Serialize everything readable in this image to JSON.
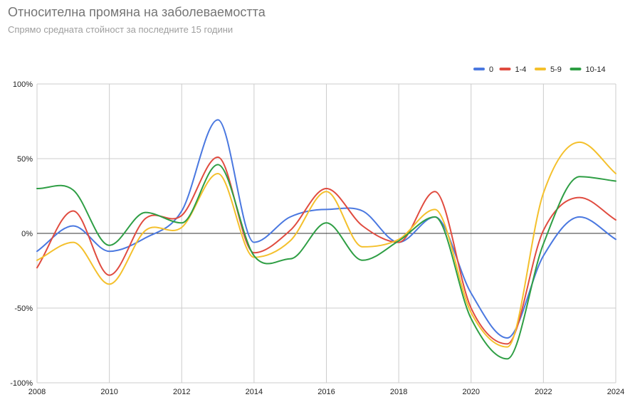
{
  "chart_data": {
    "type": "line",
    "title": "Относителна промяна на заболеваемостта",
    "subtitle": "Спрямо средната стойност за последните 15 години",
    "xlabel": "",
    "ylabel": "",
    "x": [
      2008,
      2009,
      2010,
      2011,
      2012,
      2013,
      2014,
      2015,
      2016,
      2017,
      2018,
      2019,
      2020,
      2021,
      2022,
      2023,
      2024
    ],
    "xlim": [
      2008,
      2024
    ],
    "ylim": [
      -100,
      100
    ],
    "xticks": [
      "2008",
      "2010",
      "2012",
      "2014",
      "2016",
      "2018",
      "2020",
      "2022",
      "2024"
    ],
    "yticks": [
      {
        "value": 100,
        "label": "100%"
      },
      {
        "value": 50,
        "label": "50%"
      },
      {
        "value": 0,
        "label": "0%"
      },
      {
        "value": -50,
        "label": "-50%"
      },
      {
        "value": -100,
        "label": "-100%"
      }
    ],
    "grid": true,
    "legend_position": "top-right",
    "series": [
      {
        "name": "0",
        "color": "#4a78e0",
        "values": [
          -12,
          5,
          -12,
          -3,
          15,
          76,
          -6,
          11,
          16,
          15,
          -6,
          11,
          -40,
          -70,
          -15,
          11,
          -4
        ]
      },
      {
        "name": "1-4",
        "color": "#e04b3f",
        "values": [
          -23,
          15,
          -28,
          10,
          12,
          51,
          -13,
          2,
          30,
          5,
          -6,
          28,
          -50,
          -74,
          2,
          24,
          9
        ]
      },
      {
        "name": "5-9",
        "color": "#f4c02c",
        "values": [
          -18,
          -6,
          -34,
          2,
          4,
          40,
          -16,
          -5,
          28,
          -9,
          -4,
          16,
          -53,
          -76,
          27,
          61,
          40
        ]
      },
      {
        "name": "10-14",
        "color": "#2e9e44",
        "values": [
          30,
          29,
          -8,
          14,
          7,
          46,
          -15,
          -17,
          7,
          -18,
          -5,
          11,
          -57,
          -84,
          -7,
          38,
          35
        ]
      }
    ]
  }
}
